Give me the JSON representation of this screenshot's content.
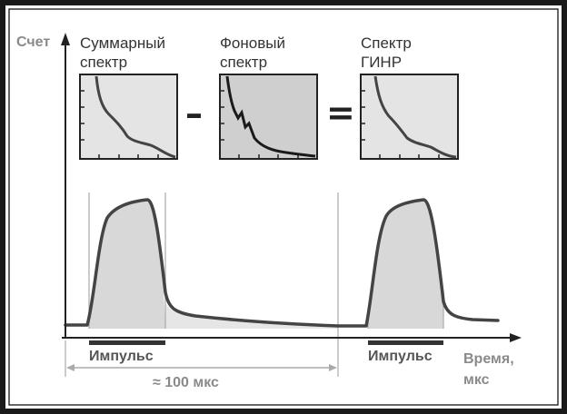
{
  "labels": {
    "y_axis": "Счет",
    "x_axis_line1": "Время,",
    "x_axis_line2": "мкс",
    "pulse1": "Импульс",
    "pulse2": "Импульс",
    "period": "≈ 100 мкс"
  },
  "insets": {
    "total": {
      "line1": "Суммарный",
      "line2": "спектр"
    },
    "background": {
      "line1": "Фоновый",
      "line2": "спектр"
    },
    "result": {
      "line1": "Спектр",
      "line2": "ГИНР"
    }
  },
  "operators": {
    "minus": "–",
    "equals": "="
  },
  "colors": {
    "frame": "#1a1a1a",
    "curve": "#444444",
    "fill": "#d8d8d8",
    "inset_bg_light": "#e4e4e4",
    "inset_bg_dark": "#cfcfcf",
    "axis_label": "#8a8a8a",
    "guide": "#aaaaaa"
  }
}
